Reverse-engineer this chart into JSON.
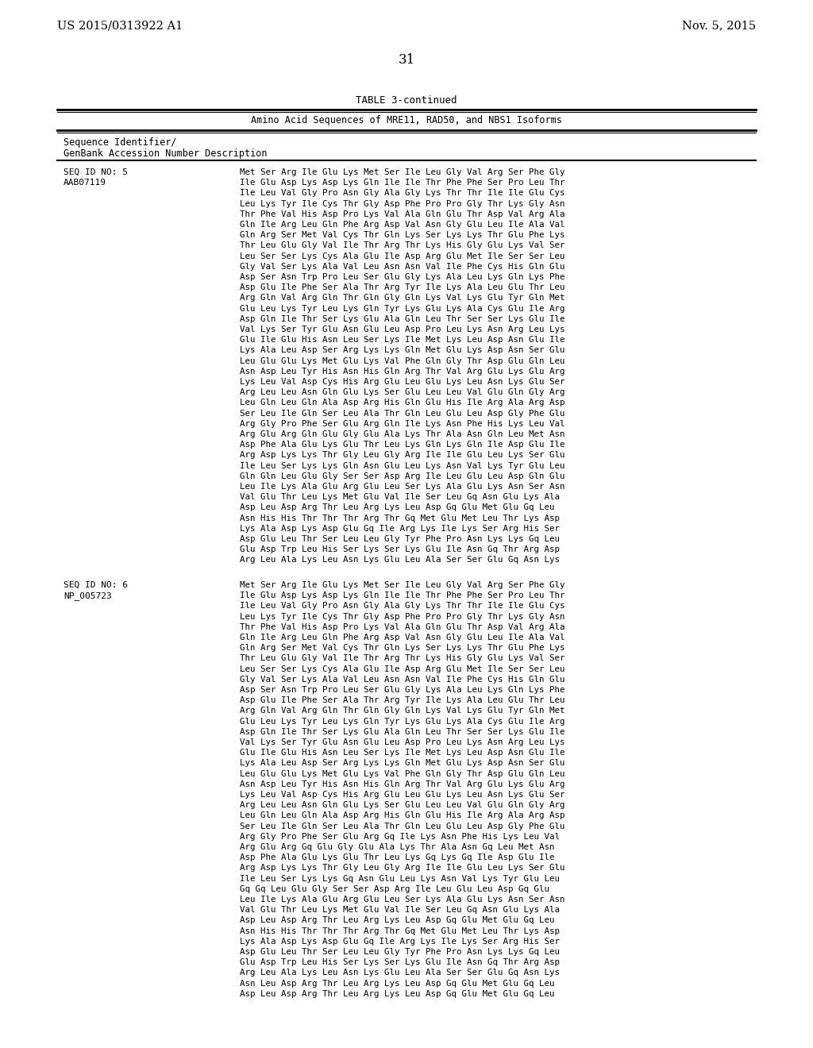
{
  "background_color": "#ffffff",
  "page_number": "31",
  "header_left": "US 2015/0313922 A1",
  "header_right": "Nov. 5, 2015",
  "table_title": "TABLE 3-continued",
  "table_subtitle": "Amino Acid Sequences of MRE11, RAD50, and NBS1 Isoforms",
  "col_header_line1": "Sequence Identifier/",
  "col_header_line2": "GenBank Accession Number Description",
  "seq5_id": "SEQ ID NO: 5",
  "seq5_acc": "AAB07119",
  "seq6_id": "SEQ ID NO: 6",
  "seq6_acc": "NP_005723",
  "seq5_lines": [
    "Met Ser Arg Ile Glu Lys Met Ser Ile Leu Gly Val Arg Ser Phe Gly",
    "Ile Glu Asp Lys Asp Lys Gln Ile Ile Thr Phe Phe Ser Pro Leu Thr",
    "Ile Leu Val Gly Pro Asn Gly Ala Gly Lys Thr Thr Ile Ile Glu Cys",
    "Leu Lys Tyr Ile Cys Thr Gly Asp Phe Pro Pro Gly Thr Lys Gly Asn",
    "Thr Phe Val His Asp Pro Lys Val Ala Gln Glu Thr Asp Val Arg Ala",
    "Gln Ile Arg Leu Gln Phe Arg Asp Val Asn Gly Glu Leu Ile Ala Val",
    "Gln Arg Ser Met Val Cys Thr Gln Lys Ser Lys Lys Thr Glu Phe Lys",
    "Thr Leu Glu Gly Val Ile Thr Arg Thr Lys His Gly Glu Lys Val Ser",
    "Leu Ser Ser Lys Cys Ala Glu Ile Asp Arg Glu Met Ile Ser Ser Leu",
    "Gly Val Ser Lys Ala Val Leu Asn Asn Val Ile Phe Cys His Gln Glu",
    "Asp Ser Asn Trp Pro Leu Ser Glu Gly Lys Ala Leu Lys Gln Lys Phe",
    "Asp Glu Ile Phe Ser Ala Thr Arg Tyr Ile Lys Ala Leu Glu Thr Leu",
    "Arg Gln Val Arg Gln Thr Gln Gly Gln Lys Val Lys Glu Tyr Gln Met",
    "Glu Leu Lys Tyr Leu Lys Gln Tyr Lys Glu Lys Ala Cys Glu Ile Arg",
    "Asp Gln Ile Thr Ser Lys Glu Ala Gln Leu Thr Ser Ser Lys Glu Ile",
    "Val Lys Ser Tyr Glu Asn Glu Leu Asp Pro Leu Lys Asn Arg Leu Lys",
    "Glu Ile Glu His Asn Leu Ser Lys Ile Met Lys Leu Asp Asn Glu Ile",
    "Lys Ala Leu Asp Ser Arg Lys Lys Gln Met Glu Lys Asp Asn Ser Glu",
    "Leu Glu Glu Lys Met Glu Lys Val Phe Gln Gly Thr Asp Glu Gln Leu",
    "Asn Asp Leu Tyr His Asn His Gln Arg Thr Val Arg Glu Lys Glu Arg",
    "Lys Leu Val Asp Cys His Arg Glu Leu Glu Lys Leu Asn Lys Glu Ser",
    "Arg Leu Leu Asn Gln Glu Lys Ser Glu Leu Leu Val Glu Gln Gly Arg",
    "Leu Gln Leu Gln Ala Asp Arg His Gln Glu His Ile Arg Ala Arg Asp",
    "Ser Leu Ile Gln Ser Leu Ala Thr Gln Leu Glu Leu Asp Gly Phe Glu",
    "Arg Gly Pro Phe Ser Glu Arg Gln Ile Lys Asn Phe His Lys Leu Val",
    "Arg Glu Arg Gln Glu Gly Glu Ala Lys Thr Ala Asn Gln Leu Met Asn",
    "Asp Phe Ala Glu Lys Glu Thr Leu Lys Gln Lys Gln Ile Asp Glu Ile",
    "Arg Asp Lys Lys Thr Gly Leu Gly Arg Ile Ile Glu Leu Lys Ser Glu",
    "Ile Leu Ser Lys Lys Gln Asn Glu Leu Lys Asn Val Lys Tyr Glu Leu",
    "Gln Gln Leu Glu Gly Ser Ser Asp Arg Ile Leu Glu Leu Asp Gln Glu",
    "Leu Ile Lys Ala Glu Arg Glu Leu Ser Lys Ala Glu Lys Asn Ser Asn",
    "Val Glu Thr Leu Lys Met Glu Val Ile Ser Leu Gq Asn Glu Lys Ala",
    "Asp Leu Asp Arg Thr Leu Arg Lys Leu Asp Gq Glu Met Glu Gq Leu",
    "Asn His His Thr Thr Thr Arg Thr Gq Met Glu Met Leu Thr Lys Asp",
    "Lys Ala Asp Lys Asp Glu Gq Ile Arg Lys Ile Lys Ser Arg His Ser",
    "Asp Glu Leu Thr Ser Leu Leu Gly Tyr Phe Pro Asn Lys Lys Gq Leu",
    "Glu Asp Trp Leu His Ser Lys Ser Lys Glu Ile Asn Gq Thr Arg Asp",
    "Arg Leu Ala Lys Leu Asn Lys Glu Leu Ala Ser Ser Glu Gq Asn Lys"
  ],
  "seq6_lines": [
    "Met Ser Arg Ile Glu Lys Met Ser Ile Leu Gly Val Arg Ser Phe Gly",
    "Ile Glu Asp Lys Asp Lys Gln Ile Ile Thr Phe Phe Ser Pro Leu Thr",
    "Ile Leu Val Gly Pro Asn Gly Ala Gly Lys Thr Thr Ile Ile Glu Cys",
    "Leu Lys Tyr Ile Cys Thr Gly Asp Phe Pro Pro Gly Thr Lys Gly Asn",
    "Thr Phe Val His Asp Pro Lys Val Ala Gln Glu Thr Asp Val Arg Ala",
    "Gln Ile Arg Leu Gln Phe Arg Asp Val Asn Gly Glu Leu Ile Ala Val",
    "Gln Arg Ser Met Val Cys Thr Gln Lys Ser Lys Lys Thr Glu Phe Lys",
    "Thr Leu Glu Gly Val Ile Thr Arg Thr Lys His Gly Glu Lys Val Ser",
    "Leu Ser Ser Lys Cys Ala Glu Ile Asp Arg Glu Met Ile Ser Ser Leu",
    "Gly Val Ser Lys Ala Val Leu Asn Asn Val Ile Phe Cys His Gln Glu",
    "Asp Ser Asn Trp Pro Leu Ser Glu Gly Lys Ala Leu Lys Gln Lys Phe",
    "Asp Glu Ile Phe Ser Ala Thr Arg Tyr Ile Lys Ala Leu Glu Thr Leu",
    "Arg Gln Val Arg Gln Thr Gln Gly Gln Lys Val Lys Glu Tyr Gln Met",
    "Glu Leu Lys Tyr Leu Lys Gln Tyr Lys Glu Lys Ala Cys Glu Ile Arg",
    "Asp Gln Ile Thr Ser Lys Glu Ala Gln Leu Thr Ser Ser Lys Glu Ile",
    "Val Lys Ser Tyr Glu Asn Glu Leu Asp Pro Leu Lys Asn Arg Leu Lys",
    "Glu Ile Glu His Asn Leu Ser Lys Ile Met Lys Leu Asp Asn Glu Ile",
    "Lys Ala Leu Asp Ser Arg Lys Lys Gln Met Glu Lys Asp Asn Ser Glu",
    "Leu Glu Glu Lys Met Glu Lys Val Phe Gln Gly Thr Asp Glu Gln Leu",
    "Asn Asp Leu Tyr His Asn His Gln Arg Thr Val Arg Glu Lys Glu Arg",
    "Lys Leu Val Asp Cys His Arg Glu Leu Glu Lys Leu Asn Lys Glu Ser",
    "Arg Leu Leu Asn Gln Glu Lys Ser Glu Leu Leu Val Glu Gln Gly Arg",
    "Leu Gln Leu Gln Ala Asp Arg His Gln Glu His Ile Arg Ala Arg Asp",
    "Ser Leu Ile Gln Ser Leu Ala Thr Gln Leu Glu Leu Asp Gly Phe Glu",
    "Arg Gly Pro Phe Ser Glu Arg Gq Ile Lys Asn Phe His Lys Leu Val",
    "Arg Glu Arg Gq Glu Gly Glu Ala Lys Thr Ala Asn Gq Leu Met Asn",
    "Asp Phe Ala Glu Lys Glu Thr Leu Lys Gq Lys Gq Ile Asp Glu Ile",
    "Arg Asp Lys Lys Thr Gly Leu Gly Arg Ile Ile Glu Leu Lys Ser Glu",
    "Ile Leu Ser Lys Lys Gq Asn Glu Leu Lys Asn Val Lys Tyr Glu Leu",
    "Gq Gq Leu Glu Gly Ser Ser Asp Arg Ile Leu Glu Leu Asp Gq Glu",
    "Leu Ile Lys Ala Glu Arg Glu Leu Ser Lys Ala Glu Lys Asn Ser Asn",
    "Val Glu Thr Leu Lys Met Glu Val Ile Ser Leu Gq Asn Glu Lys Ala",
    "Asp Leu Asp Arg Thr Leu Arg Lys Leu Asp Gq Glu Met Glu Gq Leu",
    "Asn His His Thr Thr Thr Arg Thr Gq Met Glu Met Leu Thr Lys Asp",
    "Lys Ala Asp Lys Asp Glu Gq Ile Arg Lys Ile Lys Ser Arg His Ser",
    "Asp Glu Leu Thr Ser Leu Leu Gly Tyr Phe Pro Asn Lys Lys Gq Leu",
    "Glu Asp Trp Leu His Ser Lys Ser Lys Glu Ile Asn Gq Thr Arg Asp",
    "Arg Leu Ala Lys Leu Asn Lys Glu Leu Ala Ser Ser Glu Gq Asn Lys",
    "Asn Leu Asp Arg Thr Leu Arg Lys Leu Asp Gq Glu Met Glu Gq Leu",
    "Asp Leu Asp Arg Thr Leu Arg Lys Leu Asp Gq Glu Met Glu Gq Leu"
  ]
}
